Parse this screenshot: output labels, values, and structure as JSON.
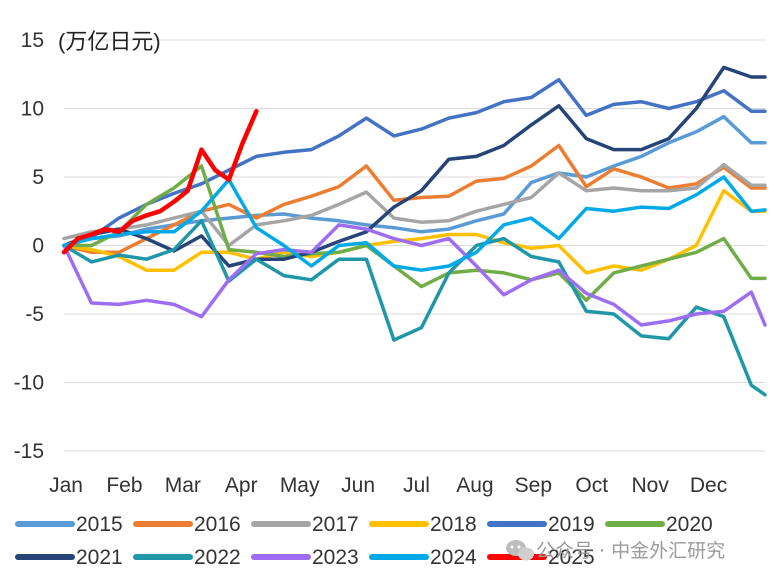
{
  "chart_data": {
    "type": "line",
    "title": "",
    "ylabel": "(万亿日元)",
    "xlabel": "",
    "ylim": [
      -15,
      15
    ],
    "yticks": [
      -15,
      -10,
      -5,
      0,
      5,
      10,
      15
    ],
    "x_tick_labels": [
      "Jan",
      "Feb",
      "Mar",
      "Apr",
      "May",
      "Jun",
      "Jul",
      "Aug",
      "Sep",
      "Oct",
      "Nov",
      "Dec"
    ],
    "x_unit": "week of year (1-52)",
    "grid": "horizontal",
    "legend_position": "bottom",
    "series": [
      {
        "name": "2015",
        "color": "#5B9BD5",
        "x": [
          1,
          3,
          5,
          7,
          9,
          11,
          13,
          15,
          17,
          19,
          21,
          23,
          25,
          27,
          29,
          31,
          33,
          35,
          37,
          39,
          41,
          43,
          45,
          47,
          49,
          51,
          52
        ],
        "y": [
          0,
          0.5,
          0.7,
          1.2,
          1.5,
          1.8,
          2.0,
          2.2,
          2.3,
          2.0,
          1.8,
          1.5,
          1.3,
          1.0,
          1.2,
          1.8,
          2.3,
          4.6,
          5.3,
          5.0,
          5.8,
          6.5,
          7.5,
          8.3,
          9.4,
          7.5,
          7.5
        ]
      },
      {
        "name": "2016",
        "color": "#ED7D31",
        "x": [
          1,
          3,
          5,
          7,
          9,
          11,
          13,
          15,
          17,
          19,
          21,
          23,
          25,
          27,
          29,
          31,
          33,
          35,
          37,
          39,
          41,
          43,
          45,
          47,
          49,
          51,
          52
        ],
        "y": [
          0,
          -0.5,
          -0.5,
          0.5,
          1.5,
          2.5,
          3.0,
          2.0,
          3.0,
          3.6,
          4.3,
          5.8,
          3.3,
          3.5,
          3.6,
          4.7,
          4.9,
          5.8,
          7.3,
          4.3,
          5.6,
          5.0,
          4.2,
          4.5,
          5.7,
          4.2,
          4.2
        ]
      },
      {
        "name": "2017",
        "color": "#A5A5A5",
        "x": [
          1,
          3,
          5,
          7,
          9,
          11,
          13,
          15,
          17,
          19,
          21,
          23,
          25,
          27,
          29,
          31,
          33,
          35,
          37,
          39,
          41,
          43,
          45,
          47,
          49,
          51,
          52
        ],
        "y": [
          0.5,
          1.0,
          1.2,
          1.5,
          2.0,
          2.5,
          0,
          1.5,
          1.8,
          2.2,
          3.0,
          3.9,
          2.0,
          1.7,
          1.8,
          2.5,
          3.0,
          3.5,
          5.3,
          4.0,
          4.2,
          4.0,
          4.0,
          4.2,
          5.9,
          4.4,
          4.4
        ]
      },
      {
        "name": "2018",
        "color": "#FFC000",
        "x": [
          1,
          3,
          5,
          7,
          9,
          11,
          13,
          15,
          17,
          19,
          21,
          23,
          25,
          27,
          29,
          31,
          33,
          35,
          37,
          39,
          41,
          43,
          45,
          47,
          49,
          51,
          52
        ],
        "y": [
          0,
          -0.3,
          -0.8,
          -1.8,
          -1.8,
          -0.5,
          -0.5,
          -1.0,
          -0.5,
          -0.8,
          -0.5,
          0,
          0.3,
          0.5,
          0.8,
          0.8,
          0.2,
          -0.2,
          0,
          -2.0,
          -1.5,
          -1.8,
          -1.0,
          0,
          4.0,
          2.5,
          2.5
        ]
      },
      {
        "name": "2019",
        "color": "#4472C4",
        "x": [
          1,
          3,
          5,
          7,
          9,
          11,
          13,
          15,
          17,
          19,
          21,
          23,
          25,
          27,
          29,
          31,
          33,
          35,
          37,
          39,
          41,
          43,
          45,
          47,
          49,
          51,
          52
        ],
        "y": [
          0,
          0.6,
          2.0,
          3.0,
          3.8,
          4.5,
          5.5,
          6.5,
          6.8,
          7.0,
          8.0,
          9.3,
          8.0,
          8.5,
          9.3,
          9.7,
          10.5,
          10.8,
          12.1,
          9.5,
          10.3,
          10.5,
          10.0,
          10.5,
          11.3,
          9.8,
          9.8
        ]
      },
      {
        "name": "2020",
        "color": "#70AD47",
        "x": [
          1,
          3,
          5,
          7,
          9,
          11,
          13,
          15,
          17,
          19,
          21,
          23,
          25,
          27,
          29,
          31,
          33,
          35,
          37,
          39,
          41,
          43,
          45,
          47,
          49,
          51,
          52
        ],
        "y": [
          0,
          0,
          1.0,
          3.0,
          4.2,
          5.8,
          -0.3,
          -0.5,
          -0.8,
          -0.6,
          -0.5,
          0,
          -1.5,
          -3.0,
          -2.0,
          -1.8,
          -2.0,
          -2.5,
          -2.0,
          -4.0,
          -2.0,
          -1.5,
          -1.0,
          -0.5,
          0.5,
          -2.4,
          -2.4
        ]
      },
      {
        "name": "2021",
        "color": "#264478",
        "x": [
          1,
          3,
          5,
          7,
          9,
          11,
          13,
          15,
          17,
          19,
          21,
          23,
          25,
          27,
          29,
          31,
          33,
          35,
          37,
          39,
          41,
          43,
          45,
          47,
          49,
          51,
          52
        ],
        "y": [
          0,
          0.8,
          1.2,
          0.5,
          -0.4,
          0.7,
          -1.5,
          -1.0,
          -1.0,
          -0.5,
          0.3,
          1.0,
          2.8,
          4.0,
          6.3,
          6.5,
          7.3,
          8.8,
          10.2,
          7.8,
          7.0,
          7.0,
          7.8,
          10.0,
          13.0,
          12.3,
          12.3
        ]
      },
      {
        "name": "2022",
        "color": "#1F97A8",
        "x": [
          1,
          3,
          5,
          7,
          9,
          11,
          13,
          15,
          17,
          19,
          21,
          23,
          25,
          27,
          29,
          31,
          33,
          35,
          37,
          39,
          41,
          43,
          45,
          47,
          49,
          51,
          52
        ],
        "y": [
          0,
          -1.2,
          -0.7,
          -1.0,
          -0.3,
          1.8,
          -2.6,
          -1.0,
          -2.2,
          -2.5,
          -1.0,
          -1.0,
          -6.9,
          -6.0,
          -2.0,
          0,
          0.5,
          -0.8,
          -1.2,
          -4.8,
          -5.0,
          -6.6,
          -6.8,
          -4.5,
          -5.2,
          -10.2,
          -10.9
        ]
      },
      {
        "name": "2023",
        "color": "#9E6EF2",
        "x": [
          1,
          3,
          5,
          7,
          9,
          11,
          13,
          15,
          17,
          19,
          21,
          23,
          25,
          27,
          29,
          31,
          33,
          35,
          37,
          39,
          41,
          43,
          45,
          47,
          49,
          51,
          52
        ],
        "y": [
          0,
          -4.2,
          -4.3,
          -4.0,
          -4.3,
          -5.2,
          -2.5,
          -0.6,
          -0.3,
          -0.5,
          1.5,
          1.2,
          0.5,
          0,
          0.5,
          -1.5,
          -3.6,
          -2.5,
          -1.8,
          -3.5,
          -4.3,
          -5.8,
          -5.5,
          -5.0,
          -4.8,
          -3.4,
          -5.8
        ]
      },
      {
        "name": "2024",
        "color": "#00A9E8",
        "x": [
          1,
          3,
          5,
          7,
          9,
          11,
          13,
          15,
          17,
          19,
          21,
          23,
          25,
          27,
          29,
          31,
          33,
          35,
          37,
          39,
          41,
          43,
          45,
          47,
          49,
          51,
          52
        ],
        "y": [
          0,
          0.5,
          0.8,
          1.0,
          1.0,
          2.5,
          4.8,
          1.3,
          0,
          -1.5,
          0,
          0.2,
          -1.5,
          -1.8,
          -1.5,
          -0.5,
          1.5,
          2.0,
          0.5,
          2.7,
          2.5,
          2.8,
          2.7,
          3.7,
          5.0,
          2.5,
          2.6
        ]
      },
      {
        "name": "2025",
        "color": "#FF0000",
        "x": [
          1,
          2,
          3,
          4,
          5,
          6,
          7,
          8,
          9,
          10,
          11,
          12,
          13,
          14,
          15
        ],
        "y": [
          -0.5,
          0.5,
          0.8,
          1.2,
          1.0,
          1.8,
          2.2,
          2.5,
          3.2,
          4.0,
          7.0,
          5.5,
          4.8,
          7.5,
          9.8
        ]
      }
    ]
  },
  "watermark": {
    "icon": "wechat-icon",
    "text": "公众号 · 中金外汇研究"
  }
}
